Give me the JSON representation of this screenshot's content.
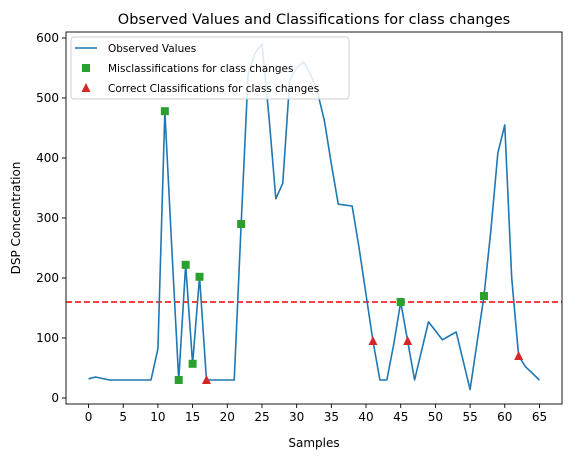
{
  "chart_data": {
    "type": "line",
    "title": "Observed Values and Classifications for class changes",
    "xlabel": "Samples",
    "ylabel": "DSP Concentration",
    "xlim": [
      -3.25,
      68.25
    ],
    "ylim": [
      -10,
      610
    ],
    "xticks": [
      0,
      5,
      10,
      15,
      20,
      25,
      30,
      35,
      40,
      45,
      50,
      55,
      60,
      65
    ],
    "yticks": [
      0,
      100,
      200,
      300,
      400,
      500,
      600
    ],
    "grid": false,
    "legend_position": "top-left",
    "threshold": {
      "y": 160,
      "color": "#ff0000",
      "style": "dashed"
    },
    "series": [
      {
        "name": "Observed Values",
        "kind": "line",
        "color": "#1f77b4",
        "points": [
          [
            0,
            32
          ],
          [
            1,
            35
          ],
          [
            3,
            30
          ],
          [
            9,
            30
          ],
          [
            10,
            82
          ],
          [
            11,
            478
          ],
          [
            12,
            250
          ],
          [
            13,
            30
          ],
          [
            14,
            222
          ],
          [
            15,
            57
          ],
          [
            16,
            202
          ],
          [
            17,
            30
          ],
          [
            21,
            30
          ],
          [
            22,
            290
          ],
          [
            23,
            540
          ],
          [
            24,
            575
          ],
          [
            25,
            590
          ],
          [
            26,
            470
          ],
          [
            27,
            332
          ],
          [
            28,
            358
          ],
          [
            29,
            530
          ],
          [
            30,
            550
          ],
          [
            31,
            560
          ],
          [
            32,
            540
          ],
          [
            33,
            510
          ],
          [
            34,
            462
          ],
          [
            35,
            390
          ],
          [
            36,
            323
          ],
          [
            38,
            320
          ],
          [
            39,
            250
          ],
          [
            41,
            95
          ],
          [
            42,
            30
          ],
          [
            43,
            30
          ],
          [
            44,
            90
          ],
          [
            45,
            160
          ],
          [
            46,
            95
          ],
          [
            47,
            30
          ],
          [
            49,
            127
          ],
          [
            51,
            97
          ],
          [
            53,
            110
          ],
          [
            55,
            14
          ],
          [
            57,
            170
          ],
          [
            58,
            280
          ],
          [
            59,
            408
          ],
          [
            60,
            455
          ],
          [
            61,
            200
          ],
          [
            62,
            70
          ],
          [
            63,
            52
          ],
          [
            65,
            30
          ]
        ]
      },
      {
        "name": "Misclassifications for class changes",
        "kind": "scatter",
        "marker": "square",
        "color": "#2ca02c",
        "points": [
          [
            11,
            478
          ],
          [
            13,
            30
          ],
          [
            14,
            222
          ],
          [
            15,
            57
          ],
          [
            16,
            202
          ],
          [
            22,
            290
          ],
          [
            45,
            160
          ],
          [
            57,
            170
          ]
        ]
      },
      {
        "name": "Correct Classifications for class changes",
        "kind": "scatter",
        "marker": "triangle",
        "color": "#d62728",
        "points": [
          [
            17,
            30
          ],
          [
            41,
            95
          ],
          [
            46,
            95
          ],
          [
            62,
            70
          ]
        ]
      }
    ]
  }
}
